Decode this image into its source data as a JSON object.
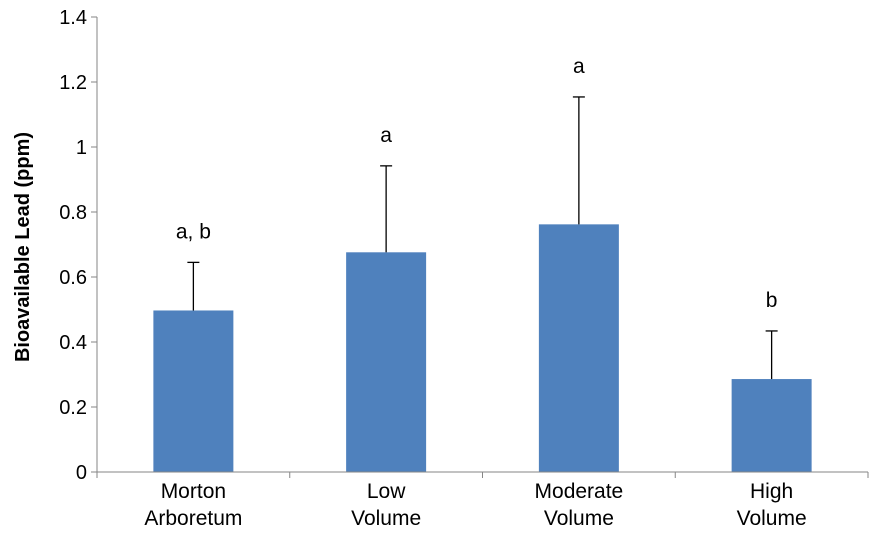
{
  "chart_data": {
    "type": "bar",
    "title": "",
    "xlabel": "",
    "ylabel": "Bioavailable Lead (ppm)",
    "ylim": [
      0,
      1.4
    ],
    "ytick_step": 0.2,
    "yticks": [
      "0",
      "0.2",
      "0.4",
      "0.6",
      "0.8",
      "1",
      "1.2",
      "1.4"
    ],
    "grid": false,
    "categories": [
      [
        "Morton",
        "Arboretum"
      ],
      [
        "Low",
        "Volume"
      ],
      [
        "Moderate",
        "Volume"
      ],
      [
        "High",
        "Volume"
      ]
    ],
    "values": [
      0.497,
      0.676,
      0.762,
      0.286
    ],
    "error_upper": [
      0.148,
      0.266,
      0.392,
      0.148
    ],
    "annotations": [
      "a, b",
      "a",
      "a",
      "b"
    ],
    "bar_color": "#4F81BD",
    "axis_color": "#868686"
  }
}
